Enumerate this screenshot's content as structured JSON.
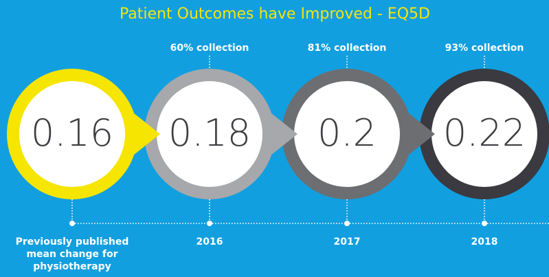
{
  "title": "Patient Outcomes have Improved - EQ5D",
  "stages": [
    {
      "value": "0.16",
      "color": "#f6e500",
      "label_lines": [
        "Previously published",
        "mean change for",
        "physiotherapy"
      ]
    },
    {
      "value": "0.18",
      "color": "#a7a8ab",
      "top": "60% collection",
      "label_lines": [
        "2016"
      ]
    },
    {
      "value": "0.2",
      "color": "#6d6e72",
      "top": "81% collection",
      "label_lines": [
        "2017"
      ]
    },
    {
      "value": "0.22",
      "color": "#3a3a40",
      "top": "93% collection",
      "label_lines": [
        "2018"
      ]
    }
  ]
}
